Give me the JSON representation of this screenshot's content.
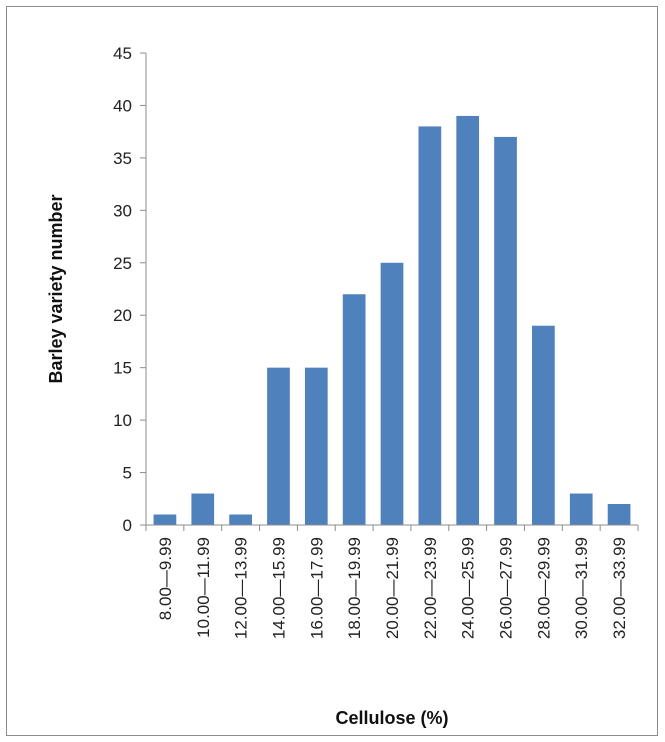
{
  "chart_data": {
    "type": "bar",
    "categories": [
      "8.00—9.99",
      "10.00—11.99",
      "12.00—13.99",
      "14.00—15.99",
      "16.00—17.99",
      "18.00—19.99",
      "20.00—21.99",
      "22.00—23.99",
      "24.00—25.99",
      "26.00—27.99",
      "28.00—29.99",
      "30.00—31.99",
      "32.00—33.99"
    ],
    "values": [
      1,
      3,
      1,
      15,
      15,
      22,
      25,
      38,
      39,
      37,
      19,
      3,
      2
    ],
    "xlabel": "Cellulose (%)",
    "ylabel": "Barley variety number",
    "ylim": [
      0,
      45
    ],
    "yticks": [
      "0",
      "5",
      "10",
      "15",
      "20",
      "25",
      "30",
      "35",
      "40",
      "45"
    ],
    "bar_color": "#4f81bd",
    "grid": false,
    "legend": "none"
  }
}
